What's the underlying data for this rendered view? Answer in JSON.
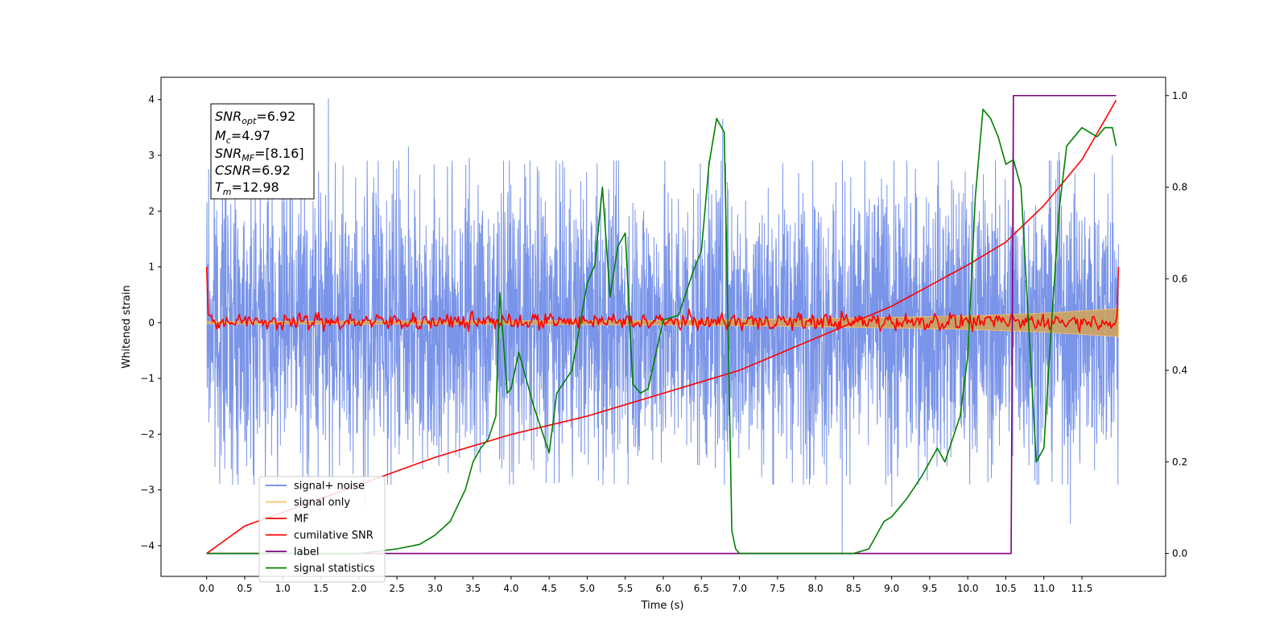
{
  "chart_data": {
    "type": "line",
    "xlabel": "Time (s)",
    "ylabel": "Whitened strain",
    "xlim": [
      -0.6,
      12.6
    ],
    "ylim": [
      -4.55,
      4.4
    ],
    "ylim_right": [
      -0.05,
      1.04
    ],
    "x_ticks": [
      "0.0",
      "0.5",
      "1.0",
      "1.5",
      "2.0",
      "2.5",
      "3.0",
      "3.5",
      "4.0",
      "4.5",
      "5.0",
      "5.5",
      "6.0",
      "6.5",
      "7.0",
      "7.5",
      "8.0",
      "8.5",
      "9.0",
      "9.5",
      "10.0",
      "10.5",
      "11.0",
      "11.5"
    ],
    "y_ticks_left": [
      "-4",
      "-3",
      "-2",
      "-1",
      "0",
      "1",
      "2",
      "3",
      "4"
    ],
    "y_ticks_right": [
      "0.0",
      "0.2",
      "0.4",
      "0.6",
      "0.8",
      "1.0"
    ],
    "grid": false,
    "legend_position": "bottom-left",
    "legend": [
      {
        "label": "signal+ noise",
        "color": "#6a88e6"
      },
      {
        "label": "signal only",
        "color": "#ffbf60"
      },
      {
        "label": "MF",
        "color": "#ff0000"
      },
      {
        "label": "cumilative SNR",
        "color": "#ff0000"
      },
      {
        "label": "label",
        "color": "#800080"
      },
      {
        "label": "signal statistics",
        "color": "#008000"
      }
    ],
    "annotation": {
      "snr_opt": "=6.92",
      "mc": "=4.97",
      "snr_mf": "=[8.16]",
      "csnr": "=6.92",
      "tm": "=12.98"
    },
    "series": [
      {
        "name": "signal+ noise",
        "axis": "left",
        "color": "#6a88e6",
        "x_range": [
          0.0,
          11.98
        ],
        "typical_range": [
          -2.2,
          2.2
        ],
        "peaks": [
          {
            "x": 1.6,
            "y": 4.02
          },
          {
            "x": 2.08,
            "y": -3.3
          },
          {
            "x": 2.65,
            "y": 3.15
          },
          {
            "x": 3.45,
            "y": 2.95
          },
          {
            "x": 5.13,
            "y": 2.85
          },
          {
            "x": 6.78,
            "y": 3.65
          },
          {
            "x": 8.35,
            "y": -4.15
          },
          {
            "x": 9.0,
            "y": -3.3
          },
          {
            "x": 10.6,
            "y": 3.9
          },
          {
            "x": 11.2,
            "y": 3.05
          },
          {
            "x": 11.35,
            "y": -3.6
          },
          {
            "x": 11.9,
            "y": 3.0
          }
        ]
      },
      {
        "name": "signal only",
        "axis": "left",
        "color": "#ffbf60",
        "envelope": [
          [
            0.0,
            0.02
          ],
          [
            4.0,
            0.03
          ],
          [
            6.0,
            0.04
          ],
          [
            8.0,
            0.07
          ],
          [
            10.0,
            0.12
          ],
          [
            11.0,
            0.17
          ],
          [
            11.98,
            0.25
          ]
        ]
      },
      {
        "name": "MF",
        "axis": "left",
        "color": "#ff0000",
        "x_range": [
          0.0,
          11.98
        ],
        "start_value": 1.0,
        "end_value": 1.0,
        "typical_range": [
          -0.2,
          0.25
        ]
      },
      {
        "name": "cumilative SNR",
        "axis": "right",
        "color": "#ff0000",
        "x": [
          0.0,
          0.5,
          1.0,
          2.0,
          3.0,
          4.0,
          5.0,
          6.0,
          7.0,
          8.0,
          9.0,
          10.0,
          10.5,
          11.0,
          11.5,
          11.95
        ],
        "values": [
          0.0,
          0.06,
          0.09,
          0.15,
          0.21,
          0.26,
          0.3,
          0.35,
          0.4,
          0.47,
          0.54,
          0.63,
          0.68,
          0.76,
          0.86,
          0.99
        ]
      },
      {
        "name": "label",
        "axis": "right",
        "color": "#800080",
        "x": [
          0.0,
          10.57,
          10.6,
          11.95
        ],
        "values": [
          0.0,
          0.0,
          1.0,
          1.0
        ]
      },
      {
        "name": "signal statistics",
        "axis": "right",
        "color": "#008000",
        "x": [
          0.0,
          0.5,
          1.0,
          1.5,
          2.0,
          2.5,
          2.8,
          3.0,
          3.2,
          3.4,
          3.5,
          3.6,
          3.7,
          3.8,
          3.85,
          3.95,
          4.0,
          4.1,
          4.2,
          4.3,
          4.5,
          4.6,
          4.8,
          5.0,
          5.1,
          5.2,
          5.3,
          5.4,
          5.5,
          5.6,
          5.7,
          5.8,
          6.0,
          6.2,
          6.4,
          6.5,
          6.6,
          6.7,
          6.8,
          6.85,
          6.9,
          6.95,
          7.0,
          7.1,
          7.5,
          8.0,
          8.5,
          8.7,
          8.9,
          9.0,
          9.2,
          9.4,
          9.6,
          9.7,
          9.8,
          9.9,
          10.0,
          10.1,
          10.2,
          10.3,
          10.4,
          10.5,
          10.6,
          10.7,
          10.8,
          10.9,
          11.0,
          11.1,
          11.2,
          11.3,
          11.4,
          11.5,
          11.6,
          11.7,
          11.8,
          11.9,
          11.95
        ],
        "values": [
          0.0,
          0.0,
          0.0,
          0.0,
          0.0,
          0.01,
          0.02,
          0.04,
          0.07,
          0.14,
          0.2,
          0.23,
          0.25,
          0.3,
          0.57,
          0.35,
          0.36,
          0.44,
          0.38,
          0.32,
          0.22,
          0.35,
          0.4,
          0.59,
          0.63,
          0.8,
          0.56,
          0.67,
          0.7,
          0.37,
          0.35,
          0.36,
          0.51,
          0.52,
          0.62,
          0.66,
          0.85,
          0.95,
          0.92,
          0.5,
          0.05,
          0.01,
          0.0,
          0.0,
          0.0,
          0.0,
          0.0,
          0.01,
          0.07,
          0.08,
          0.12,
          0.17,
          0.23,
          0.2,
          0.25,
          0.3,
          0.43,
          0.78,
          0.97,
          0.95,
          0.91,
          0.85,
          0.86,
          0.8,
          0.5,
          0.2,
          0.23,
          0.5,
          0.75,
          0.89,
          0.91,
          0.93,
          0.92,
          0.91,
          0.93,
          0.93,
          0.89
        ]
      }
    ]
  }
}
